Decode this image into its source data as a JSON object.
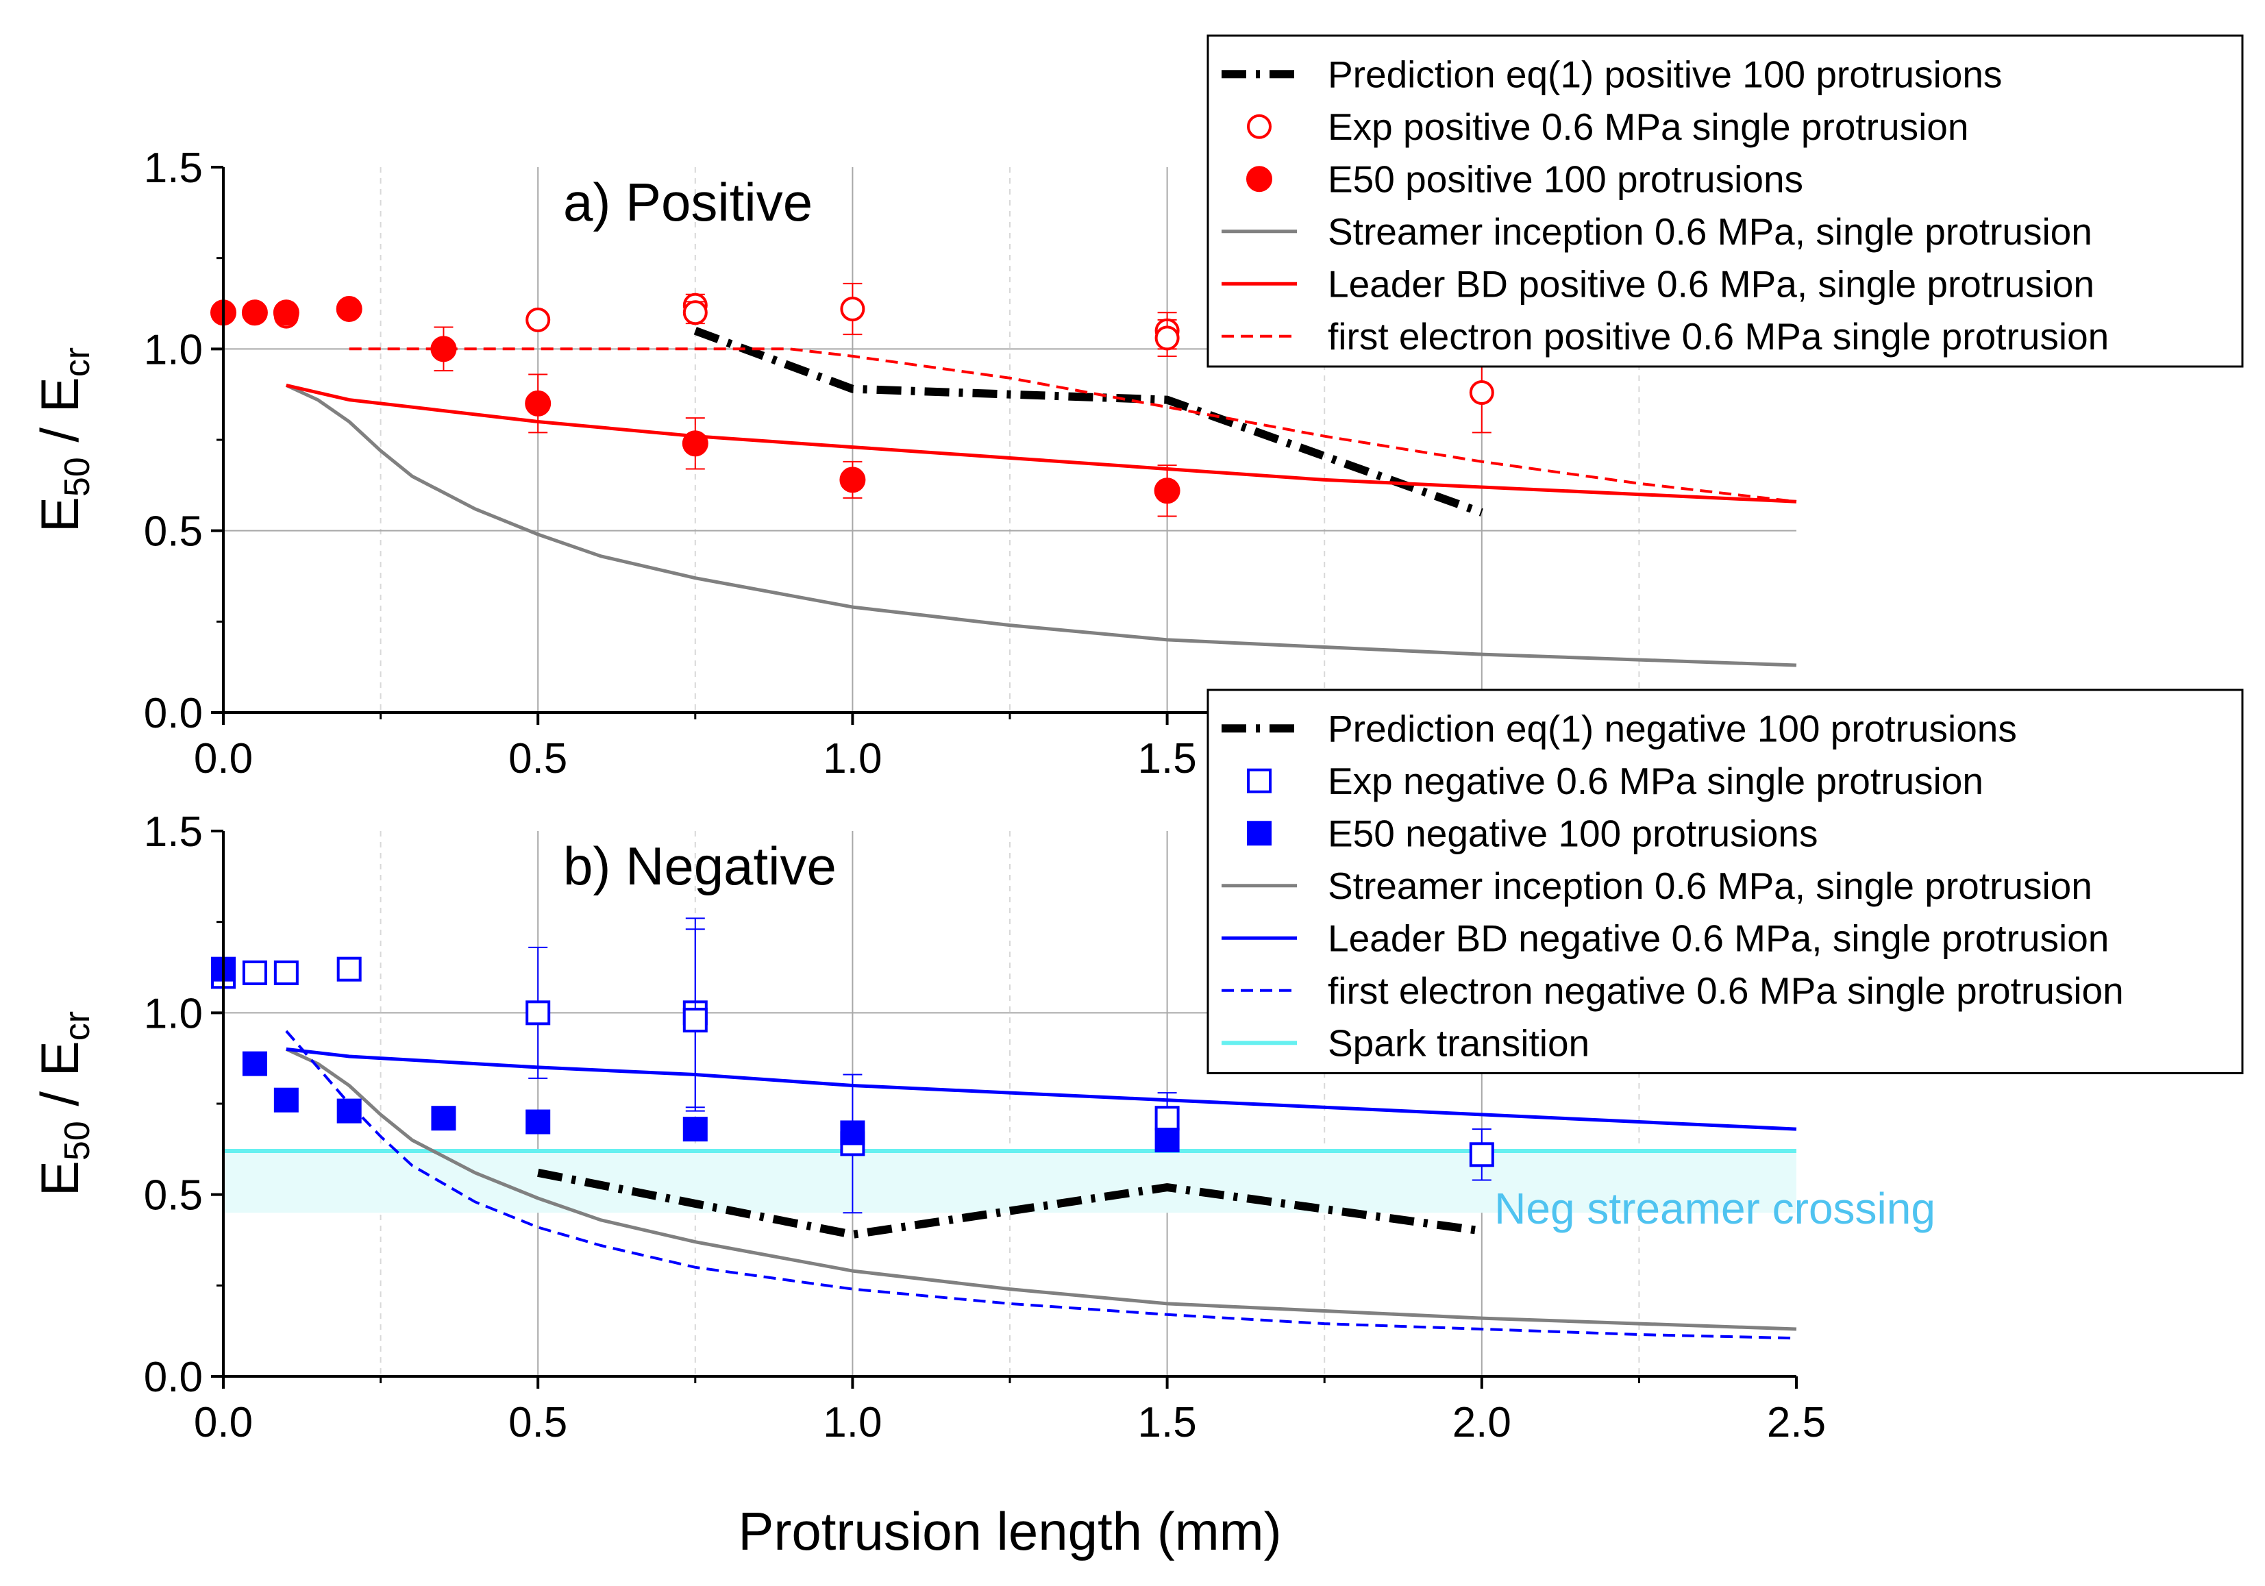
{
  "chart_data": {
    "type": "line",
    "xlabel": "Protrusion length (mm)",
    "ylabel": "E50 / Ecr",
    "ylabel_parts": {
      "main": "E",
      "sub1": "50",
      "sep": " / E",
      "sub2": "cr"
    },
    "xlim": [
      0,
      2.5
    ],
    "ylim": [
      0,
      1.5
    ],
    "x_ticks": [
      0.0,
      0.5,
      1.0,
      1.5,
      2.0,
      2.5
    ],
    "x_tick_labels": [
      "0.0",
      "0.5",
      "1.0",
      "1.5",
      "2.0",
      "2.5"
    ],
    "y_ticks": [
      0.0,
      0.5,
      1.0,
      1.5
    ],
    "y_tick_labels": [
      "0.0",
      "0.5",
      "1.0",
      "1.5"
    ],
    "panels": [
      {
        "id": "positive",
        "title": "a) Positive",
        "series": [
          {
            "name": "Prediction eq(1) positive  100 protrusions",
            "kind": "line",
            "style": "dashdot",
            "color": "#000000",
            "x": [
              0.75,
              1.0,
              1.5,
              2.0
            ],
            "y": [
              1.05,
              0.89,
              0.86,
              0.55
            ]
          },
          {
            "name": "Exp positive 0.6 MPa single protrusion",
            "kind": "scatter",
            "marker": "circle-open",
            "color": "#ff0000",
            "x": [
              0.0,
              0.05,
              0.1,
              0.2,
              0.5,
              0.75,
              0.75,
              1.0,
              1.5,
              1.5,
              2.0
            ],
            "y": [
              1.1,
              1.1,
              1.09,
              1.11,
              1.08,
              1.12,
              1.1,
              1.11,
              1.05,
              1.03,
              0.88
            ],
            "err": [
              0,
              0,
              0,
              0,
              0.02,
              0.03,
              0.03,
              0.07,
              0.05,
              0.05,
              0.11
            ]
          },
          {
            "name": "E50 positive 100 protrusions",
            "kind": "scatter",
            "marker": "circle-filled",
            "color": "#ff0000",
            "x": [
              0.0,
              0.05,
              0.1,
              0.2,
              0.35,
              0.5,
              0.75,
              1.0,
              1.5
            ],
            "y": [
              1.1,
              1.1,
              1.1,
              1.11,
              1.0,
              0.85,
              0.74,
              0.64,
              0.61
            ],
            "err": [
              0,
              0,
              0,
              0,
              0.06,
              0.08,
              0.07,
              0.05,
              0.07
            ]
          },
          {
            "name": "Streamer inception 0.6 MPa, single protrusion",
            "kind": "line",
            "style": "solid",
            "color": "#808080",
            "x": [
              0.1,
              0.15,
              0.2,
              0.25,
              0.3,
              0.4,
              0.5,
              0.6,
              0.75,
              1.0,
              1.25,
              1.5,
              1.75,
              2.0,
              2.25,
              2.5
            ],
            "y": [
              0.9,
              0.86,
              0.8,
              0.72,
              0.65,
              0.56,
              0.49,
              0.43,
              0.37,
              0.29,
              0.24,
              0.2,
              0.18,
              0.16,
              0.145,
              0.13
            ]
          },
          {
            "name": "Leader BD positive 0.6 MPa, single protrusion",
            "kind": "line",
            "style": "solid",
            "color": "#ff0000",
            "x": [
              0.1,
              0.2,
              0.3,
              0.5,
              0.75,
              1.0,
              1.25,
              1.5,
              1.75,
              2.0,
              2.25,
              2.5
            ],
            "y": [
              0.9,
              0.86,
              0.84,
              0.8,
              0.76,
              0.73,
              0.7,
              0.67,
              0.64,
              0.62,
              0.6,
              0.58
            ]
          },
          {
            "name": "first electron positive 0.6 MPa single protrusion",
            "kind": "line",
            "style": "dashed",
            "color": "#ff0000",
            "x": [
              0.2,
              0.5,
              0.75,
              0.9,
              1.0,
              1.25,
              1.5,
              1.75,
              2.0,
              2.25,
              2.5
            ],
            "y": [
              1.0,
              1.0,
              1.0,
              1.0,
              0.98,
              0.92,
              0.84,
              0.76,
              0.69,
              0.63,
              0.58
            ]
          }
        ]
      },
      {
        "id": "negative",
        "title": "b) Negative",
        "band": {
          "name": "Spark transition",
          "y0": 0.45,
          "y1": 0.62,
          "color": "#66f0f0"
        },
        "annotation": {
          "text": "Neg streamer crossing",
          "x": 2.02,
          "y": 0.42,
          "color": "#4fc3f0"
        },
        "series": [
          {
            "name": "Prediction eq(1) negative 100 protrusions",
            "kind": "line",
            "style": "dashdot",
            "color": "#000000",
            "x": [
              0.5,
              1.0,
              1.5,
              2.0
            ],
            "y": [
              0.56,
              0.39,
              0.52,
              0.4
            ]
          },
          {
            "name": "Exp negative 0.6 MPa single protrusion",
            "kind": "scatter",
            "marker": "square-open",
            "color": "#0000ff",
            "x": [
              0.0,
              0.05,
              0.1,
              0.2,
              0.5,
              0.75,
              0.75,
              1.0,
              1.5,
              2.0
            ],
            "y": [
              1.1,
              1.11,
              1.11,
              1.12,
              1.0,
              1.0,
              0.98,
              0.64,
              0.71,
              0.61
            ],
            "err": [
              0.02,
              0.02,
              0.02,
              0.02,
              0.18,
              0.26,
              0.25,
              0.19,
              0.07,
              0.07
            ]
          },
          {
            "name": "E50 negative 100 protrusions",
            "kind": "scatter",
            "marker": "square-filled",
            "color": "#0000ff",
            "x": [
              0.0,
              0.05,
              0.1,
              0.2,
              0.35,
              0.5,
              0.75,
              1.0,
              1.5
            ],
            "y": [
              1.12,
              0.86,
              0.76,
              0.73,
              0.71,
              0.7,
              0.68,
              0.67,
              0.65
            ],
            "err": [
              0,
              0,
              0,
              0,
              0,
              0,
              0,
              0,
              0
            ]
          },
          {
            "name": "Streamer inception 0.6 MPa, single protrusion",
            "kind": "line",
            "style": "solid",
            "color": "#808080",
            "x": [
              0.1,
              0.15,
              0.2,
              0.25,
              0.3,
              0.4,
              0.5,
              0.6,
              0.75,
              1.0,
              1.25,
              1.5,
              1.75,
              2.0,
              2.25,
              2.5
            ],
            "y": [
              0.9,
              0.86,
              0.8,
              0.72,
              0.65,
              0.56,
              0.49,
              0.43,
              0.37,
              0.29,
              0.24,
              0.2,
              0.18,
              0.16,
              0.145,
              0.13
            ]
          },
          {
            "name": "Leader BD negative 0.6 MPa, single protrusion",
            "kind": "line",
            "style": "solid",
            "color": "#0000ff",
            "x": [
              0.1,
              0.2,
              0.5,
              0.75,
              1.0,
              1.5,
              2.0,
              2.5
            ],
            "y": [
              0.9,
              0.88,
              0.85,
              0.83,
              0.8,
              0.76,
              0.72,
              0.68
            ]
          },
          {
            "name": "first electron negative  0.6 MPa single protrusion",
            "kind": "line",
            "style": "dashed",
            "color": "#0000ff",
            "x": [
              0.1,
              0.15,
              0.2,
              0.25,
              0.3,
              0.4,
              0.5,
              0.6,
              0.75,
              1.0,
              1.25,
              1.5,
              1.75,
              2.0,
              2.25,
              2.5
            ],
            "y": [
              0.95,
              0.85,
              0.75,
              0.66,
              0.58,
              0.48,
              0.41,
              0.36,
              0.3,
              0.24,
              0.2,
              0.17,
              0.145,
              0.13,
              0.115,
              0.105
            ]
          }
        ]
      }
    ]
  }
}
